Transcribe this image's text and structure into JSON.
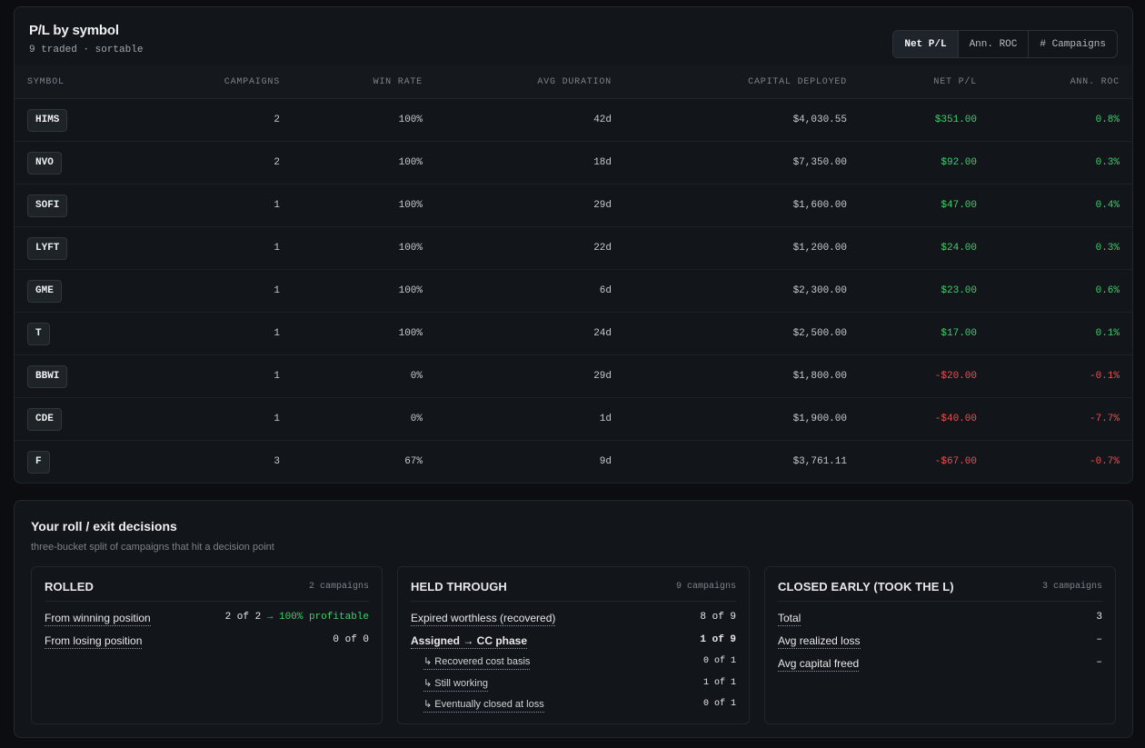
{
  "pl": {
    "title": "P/L by symbol",
    "subtitle": "9 traded · sortable",
    "toggles": [
      "Net P/L",
      "Ann. ROC",
      "# Campaigns"
    ],
    "active_toggle": "Net P/L",
    "columns": {
      "symbol": "SYMBOL",
      "campaigns": "CAMPAIGNS",
      "win_rate": "WIN RATE",
      "avg_duration": "AVG DURATION",
      "capital": "CAPITAL DEPLOYED",
      "net_pl": "NET P/L",
      "ann_roc": "ANN. ROC"
    },
    "rows": [
      {
        "symbol": "HIMS",
        "campaigns": "2",
        "win_rate": "100%",
        "avg_duration": "42d",
        "capital": "$4,030.55",
        "net_pl": "$351.00",
        "ann_roc": "0.8%",
        "sign": "pos"
      },
      {
        "symbol": "NVO",
        "campaigns": "2",
        "win_rate": "100%",
        "avg_duration": "18d",
        "capital": "$7,350.00",
        "net_pl": "$92.00",
        "ann_roc": "0.3%",
        "sign": "pos"
      },
      {
        "symbol": "SOFI",
        "campaigns": "1",
        "win_rate": "100%",
        "avg_duration": "29d",
        "capital": "$1,600.00",
        "net_pl": "$47.00",
        "ann_roc": "0.4%",
        "sign": "pos"
      },
      {
        "symbol": "LYFT",
        "campaigns": "1",
        "win_rate": "100%",
        "avg_duration": "22d",
        "capital": "$1,200.00",
        "net_pl": "$24.00",
        "ann_roc": "0.3%",
        "sign": "pos"
      },
      {
        "symbol": "GME",
        "campaigns": "1",
        "win_rate": "100%",
        "avg_duration": "6d",
        "capital": "$2,300.00",
        "net_pl": "$23.00",
        "ann_roc": "0.6%",
        "sign": "pos"
      },
      {
        "symbol": "T",
        "campaigns": "1",
        "win_rate": "100%",
        "avg_duration": "24d",
        "capital": "$2,500.00",
        "net_pl": "$17.00",
        "ann_roc": "0.1%",
        "sign": "pos"
      },
      {
        "symbol": "BBWI",
        "campaigns": "1",
        "win_rate": "0%",
        "avg_duration": "29d",
        "capital": "$1,800.00",
        "net_pl": "-$20.00",
        "ann_roc": "-0.1%",
        "sign": "neg"
      },
      {
        "symbol": "CDE",
        "campaigns": "1",
        "win_rate": "0%",
        "avg_duration": "1d",
        "capital": "$1,900.00",
        "net_pl": "-$40.00",
        "ann_roc": "-7.7%",
        "sign": "neg"
      },
      {
        "symbol": "F",
        "campaigns": "3",
        "win_rate": "67%",
        "avg_duration": "9d",
        "capital": "$3,761.11",
        "net_pl": "-$67.00",
        "ann_roc": "-0.7%",
        "sign": "neg"
      }
    ]
  },
  "decisions": {
    "title": "Your roll / exit decisions",
    "subtitle": "three-bucket split of campaigns that hit a decision point",
    "rolled": {
      "title": "ROLLED",
      "count": "2 campaigns",
      "lines": [
        {
          "label": "From winning position",
          "value": "2 of 2",
          "extra": " → 100% profitable"
        },
        {
          "label": "From losing position",
          "value": "0 of 0"
        }
      ]
    },
    "held": {
      "title": "HELD THROUGH",
      "count": "9 campaigns",
      "lines": [
        {
          "label": "Expired worthless (recovered)",
          "value": "8 of 9"
        },
        {
          "label": "Assigned → CC phase",
          "value": "1 of 9"
        }
      ],
      "sublines": [
        {
          "label": "↳ Recovered cost basis",
          "value": "0 of 1"
        },
        {
          "label": "↳ Still working",
          "value": "1 of 1"
        },
        {
          "label": "↳ Eventually closed at loss",
          "value": "0 of 1"
        }
      ]
    },
    "closed": {
      "title": "CLOSED EARLY (TOOK THE L)",
      "count": "3 campaigns",
      "lines": [
        {
          "label": "Total",
          "value": "3"
        },
        {
          "label": "Avg realized loss",
          "value": "–"
        },
        {
          "label": "Avg capital freed",
          "value": "–"
        }
      ]
    }
  },
  "colors": {
    "positive": "#3fcf6a",
    "negative": "#ef4f4f",
    "background": "#0b0d10",
    "panel": "#121519"
  }
}
